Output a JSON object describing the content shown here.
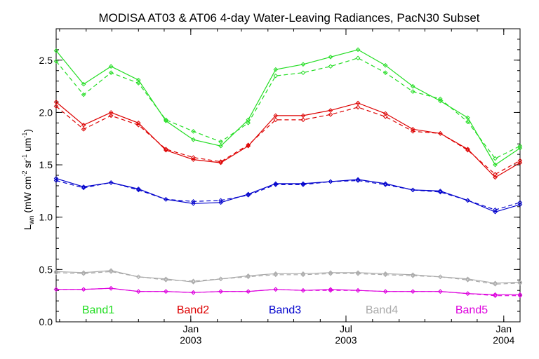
{
  "chart_data": {
    "type": "line",
    "title": "MODISA AT03 & AT06 4-day Water-Leaving Radiances, PacN30 Subset",
    "ylabel": {
      "symbol": "L",
      "subscript": "wn",
      "units_open": "(mW cm",
      "units_exp1": "-2",
      "units_sr": " sr",
      "units_exp2": "-1",
      "units_um": " um",
      "units_exp3": "-1",
      "units_close": ")"
    },
    "xlabel": "",
    "ylim": [
      0.0,
      2.8
    ],
    "yticks": [
      "0.0",
      "0.5",
      "1.0",
      "1.5",
      "2.0",
      "2.5"
    ],
    "xlim": [
      "2002-07-28",
      "2004-01-20"
    ],
    "xticks": [
      {
        "date": "2003-01-01",
        "line1": "Jan",
        "line2": "2003"
      },
      {
        "date": "2003-07-01",
        "line1": "Jul",
        "line2": "2003"
      },
      {
        "date": "2004-01-01",
        "line1": "Jan",
        "line2": "2004"
      }
    ],
    "grid": false,
    "x": [
      "2002-07-28",
      "2002-08-29",
      "2002-09-30",
      "2002-11-01",
      "2002-12-03",
      "2003-01-04",
      "2003-02-05",
      "2003-03-09",
      "2003-04-10",
      "2003-05-12",
      "2003-06-13",
      "2003-07-15",
      "2003-08-16",
      "2003-09-17",
      "2003-10-19",
      "2003-11-20",
      "2003-12-22",
      "2004-01-20"
    ],
    "series": [
      {
        "name": "Band1",
        "color": "#22dd22",
        "style": "solid",
        "values": [
          2.59,
          2.27,
          2.44,
          2.31,
          1.92,
          1.74,
          1.68,
          1.93,
          2.41,
          2.46,
          2.53,
          2.6,
          2.45,
          2.25,
          2.11,
          1.95,
          1.5,
          1.66
        ]
      },
      {
        "name": "Band1",
        "color": "#22dd22",
        "style": "dashed",
        "values": [
          2.49,
          2.17,
          2.38,
          2.28,
          1.93,
          1.82,
          1.72,
          1.9,
          2.35,
          2.38,
          2.44,
          2.52,
          2.38,
          2.2,
          2.13,
          1.91,
          1.56,
          1.68
        ]
      },
      {
        "name": "Band2",
        "color": "#dd0000",
        "style": "solid",
        "values": [
          2.1,
          1.88,
          2.0,
          1.9,
          1.64,
          1.55,
          1.52,
          1.68,
          1.97,
          1.97,
          2.02,
          2.09,
          1.99,
          1.84,
          1.8,
          1.65,
          1.38,
          1.52
        ]
      },
      {
        "name": "Band2",
        "color": "#dd0000",
        "style": "dashed",
        "values": [
          2.06,
          1.84,
          1.97,
          1.88,
          1.65,
          1.57,
          1.53,
          1.69,
          1.93,
          1.93,
          1.98,
          2.05,
          1.96,
          1.82,
          1.8,
          1.64,
          1.41,
          1.54
        ]
      },
      {
        "name": "Band3",
        "color": "#0000cc",
        "style": "solid",
        "values": [
          1.37,
          1.29,
          1.33,
          1.27,
          1.17,
          1.13,
          1.14,
          1.22,
          1.32,
          1.32,
          1.34,
          1.36,
          1.32,
          1.26,
          1.25,
          1.16,
          1.05,
          1.12
        ]
      },
      {
        "name": "Band3",
        "color": "#0000cc",
        "style": "dashed",
        "values": [
          1.35,
          1.28,
          1.33,
          1.26,
          1.17,
          1.15,
          1.16,
          1.21,
          1.31,
          1.31,
          1.34,
          1.35,
          1.31,
          1.26,
          1.24,
          1.16,
          1.07,
          1.14
        ]
      },
      {
        "name": "Band4",
        "color": "#aaaaaa",
        "style": "solid",
        "values": [
          0.48,
          0.47,
          0.49,
          0.43,
          0.41,
          0.38,
          0.41,
          0.44,
          0.46,
          0.46,
          0.47,
          0.47,
          0.46,
          0.45,
          0.43,
          0.41,
          0.37,
          0.38
        ]
      },
      {
        "name": "Band4",
        "color": "#aaaaaa",
        "style": "dashed",
        "values": [
          0.47,
          0.46,
          0.48,
          0.43,
          0.4,
          0.39,
          0.41,
          0.43,
          0.45,
          0.45,
          0.46,
          0.46,
          0.45,
          0.44,
          0.43,
          0.4,
          0.36,
          0.37
        ]
      },
      {
        "name": "Band5",
        "color": "#dd00dd",
        "style": "solid",
        "values": [
          0.31,
          0.31,
          0.32,
          0.29,
          0.29,
          0.28,
          0.29,
          0.29,
          0.31,
          0.3,
          0.31,
          0.3,
          0.29,
          0.29,
          0.29,
          0.27,
          0.26,
          0.26
        ]
      },
      {
        "name": "Band5",
        "color": "#dd00dd",
        "style": "dashed",
        "values": [
          0.31,
          0.31,
          0.32,
          0.29,
          0.29,
          0.28,
          0.29,
          0.29,
          0.31,
          0.3,
          0.3,
          0.3,
          0.29,
          0.29,
          0.29,
          0.27,
          0.25,
          0.25
        ]
      }
    ],
    "legend": {
      "placement": "bottom-inside",
      "entries": [
        {
          "label": "Band1",
          "color": "#22dd22"
        },
        {
          "label": "Band2",
          "color": "#dd0000"
        },
        {
          "label": "Band3",
          "color": "#0000cc"
        },
        {
          "label": "Band4",
          "color": "#aaaaaa"
        },
        {
          "label": "Band5",
          "color": "#dd00dd"
        }
      ]
    }
  }
}
